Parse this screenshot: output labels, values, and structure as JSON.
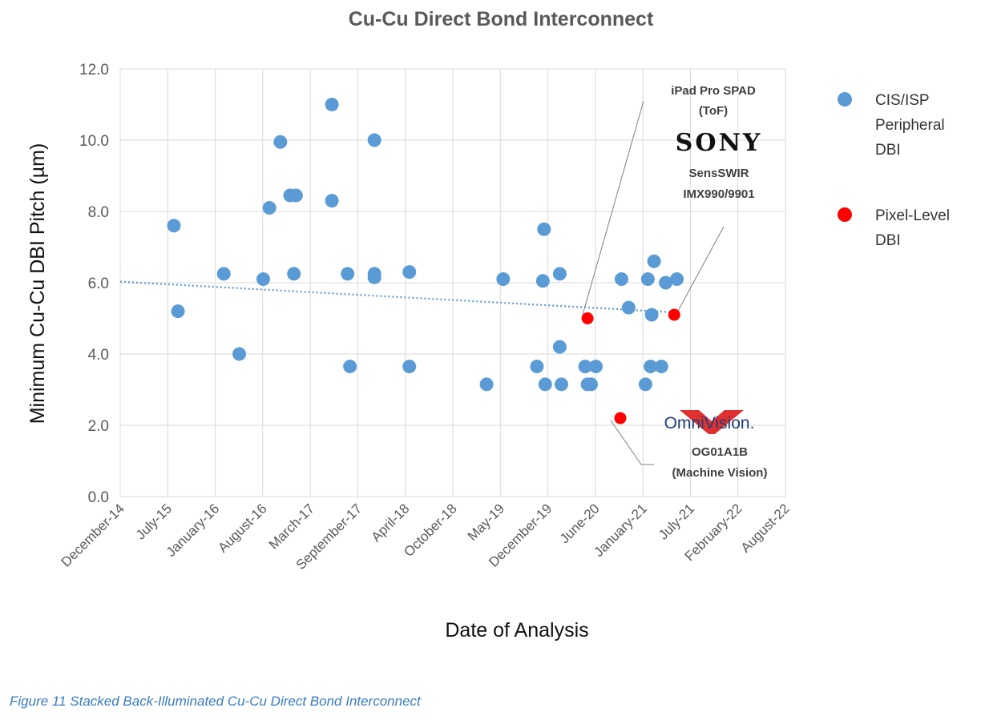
{
  "chart_data": {
    "type": "scatter",
    "title": "Cu-Cu Direct Bond Interconnect",
    "xlabel": "Date of Analysis",
    "ylabel": "Minimum Cu-Cu DBI Pitch (µm)",
    "x_ticks": [
      "December-14",
      "July-15",
      "January-16",
      "August-16",
      "March-17",
      "September-17",
      "April-18",
      "October-18",
      "May-19",
      "December-19",
      "June-20",
      "January-21",
      "July-21",
      "February-22",
      "August-22"
    ],
    "x_range": [
      "December-14",
      "August-22"
    ],
    "ylim": [
      0,
      12
    ],
    "y_ticks": [
      "0.0",
      "2.0",
      "4.0",
      "6.0",
      "8.0",
      "10.0",
      "12.0"
    ],
    "grid": true,
    "legend_position": "right",
    "series": [
      {
        "name": "CIS/ISP Peripheral DBI",
        "color": "#5b9bd5",
        "points": [
          {
            "x": "2015-07-15",
            "y": 7.6
          },
          {
            "x": "2015-08-01",
            "y": 5.2
          },
          {
            "x": "2016-02-10",
            "y": 6.25
          },
          {
            "x": "2016-04-15",
            "y": 4.0
          },
          {
            "x": "2016-07-25",
            "y": 6.1
          },
          {
            "x": "2016-08-20",
            "y": 8.1
          },
          {
            "x": "2016-10-05",
            "y": 9.95
          },
          {
            "x": "2016-11-15",
            "y": 8.45
          },
          {
            "x": "2016-12-01",
            "y": 6.25
          },
          {
            "x": "2016-12-10",
            "y": 8.45
          },
          {
            "x": "2017-05-10",
            "y": 11.0
          },
          {
            "x": "2017-05-10",
            "y": 8.3
          },
          {
            "x": "2017-07-15",
            "y": 6.25
          },
          {
            "x": "2017-07-25",
            "y": 3.65
          },
          {
            "x": "2017-11-05",
            "y": 10.0
          },
          {
            "x": "2017-11-05",
            "y": 6.25
          },
          {
            "x": "2017-11-05",
            "y": 6.15
          },
          {
            "x": "2018-04-01",
            "y": 6.3
          },
          {
            "x": "2018-04-01",
            "y": 3.65
          },
          {
            "x": "2019-02-20",
            "y": 3.15
          },
          {
            "x": "2019-05-01",
            "y": 6.1
          },
          {
            "x": "2019-09-20",
            "y": 3.65
          },
          {
            "x": "2019-10-15",
            "y": 6.05
          },
          {
            "x": "2019-10-20",
            "y": 7.5
          },
          {
            "x": "2019-10-25",
            "y": 3.15
          },
          {
            "x": "2019-12-25",
            "y": 6.25
          },
          {
            "x": "2019-12-25",
            "y": 4.2
          },
          {
            "x": "2020-01-01",
            "y": 3.15
          },
          {
            "x": "2020-04-10",
            "y": 3.65
          },
          {
            "x": "2020-04-20",
            "y": 3.15
          },
          {
            "x": "2020-05-05",
            "y": 3.15
          },
          {
            "x": "2020-05-25",
            "y": 3.65
          },
          {
            "x": "2020-09-10",
            "y": 6.1
          },
          {
            "x": "2020-10-10",
            "y": 5.3
          },
          {
            "x": "2020-12-20",
            "y": 3.15
          },
          {
            "x": "2020-12-30",
            "y": 6.1
          },
          {
            "x": "2021-01-10",
            "y": 3.65
          },
          {
            "x": "2021-01-15",
            "y": 5.1
          },
          {
            "x": "2021-01-25",
            "y": 6.6
          },
          {
            "x": "2021-02-25",
            "y": 3.65
          },
          {
            "x": "2021-03-15",
            "y": 6.0
          },
          {
            "x": "2021-05-01",
            "y": 6.1
          }
        ]
      },
      {
        "name": "Pixel-Level DBI",
        "color": "#ff0000",
        "points": [
          {
            "x": "2020-04-20",
            "y": 5.0
          },
          {
            "x": "2020-09-05",
            "y": 2.2
          },
          {
            "x": "2021-04-20",
            "y": 5.1
          }
        ]
      }
    ],
    "trendline": {
      "style": "dotted",
      "color": "#5b9bd5",
      "from": {
        "x": "2014-12-01",
        "y": 6.03
      },
      "to": {
        "x": "2021-04-20",
        "y": 5.17
      }
    },
    "legend": [
      {
        "lines": [
          "CIS/ISP",
          "Peripheral",
          "DBI"
        ],
        "color": "#5b9bd5"
      },
      {
        "lines": [
          "Pixel-Level",
          "DBI"
        ],
        "color": "#ff0000"
      }
    ],
    "annotations": [
      {
        "lines": [
          "iPad Pro SPAD",
          "(ToF)"
        ],
        "points_to": {
          "x": "2020-04-20",
          "y": 5.0
        }
      },
      {
        "lines": [
          "SensSWIR",
          "IMX990/9901"
        ],
        "points_to": {
          "x": "2021-04-20",
          "y": 5.1
        }
      },
      {
        "lines": [
          "OG01A1B",
          "(Machine Vision)"
        ],
        "points_to": {
          "x": "2020-09-05",
          "y": 2.2
        }
      }
    ],
    "logos": [
      {
        "icon": "sony-logo",
        "text": "SONY"
      },
      {
        "icon": "omnivision-logo",
        "text": "OmniVision."
      }
    ]
  },
  "caption": "Figure 11 Stacked Back-Illuminated Cu-Cu Direct Bond Interconnect"
}
